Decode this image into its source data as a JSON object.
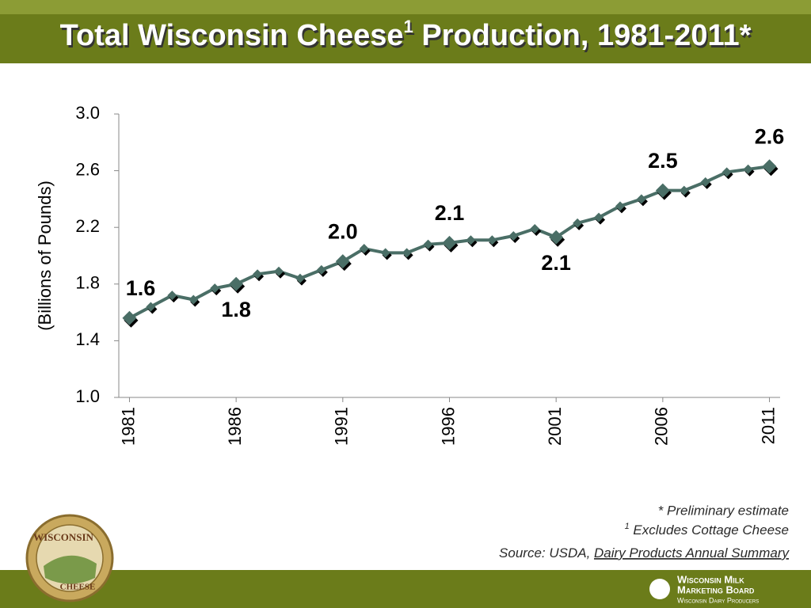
{
  "chart_data": {
    "type": "line",
    "title": "Total Wisconsin Cheese",
    "title_superscript": "1",
    "title_rest": " Production, 1981-2011*",
    "y_label": "(Billions of Pounds)",
    "x": [
      1981,
      1982,
      1983,
      1984,
      1985,
      1986,
      1987,
      1988,
      1989,
      1990,
      1991,
      1992,
      1993,
      1994,
      1995,
      1996,
      1997,
      1998,
      1999,
      2000,
      2001,
      2002,
      2003,
      2004,
      2005,
      2006,
      2007,
      2008,
      2009,
      2010,
      2011
    ],
    "values": [
      1.56,
      1.64,
      1.72,
      1.69,
      1.77,
      1.8,
      1.87,
      1.89,
      1.84,
      1.9,
      1.96,
      2.05,
      2.02,
      2.02,
      2.08,
      2.09,
      2.11,
      2.11,
      2.14,
      2.19,
      2.13,
      2.23,
      2.27,
      2.35,
      2.4,
      2.46,
      2.46,
      2.52,
      2.59,
      2.61,
      2.63
    ],
    "value_labels": [
      "1.6",
      null,
      null,
      null,
      null,
      "1.8",
      null,
      null,
      null,
      null,
      "2.0",
      null,
      null,
      null,
      null,
      "2.1",
      null,
      null,
      null,
      null,
      "2.1",
      null,
      null,
      null,
      null,
      "2.5",
      null,
      null,
      null,
      null,
      "2.6"
    ],
    "color": "#4a6e66",
    "xlim": [
      1980.5,
      2011.5
    ],
    "xticks": [
      1981,
      1986,
      1991,
      1996,
      2001,
      2006,
      2011
    ],
    "ylim": [
      1.0,
      3.0
    ],
    "yticks": [
      {
        "value": 1.0,
        "label": "1.0"
      },
      1.4,
      1.8,
      2.2,
      2.6,
      {
        "value": 3.0,
        "label": "3.0"
      }
    ],
    "grid": false
  },
  "footnotes": {
    "preliminary": "* Preliminary estimate",
    "excludes_mark": "1",
    "excludes": " Excludes Cottage Cheese",
    "source": "Source: USDA, ",
    "source_title": "Dairy Products Annual Summary"
  },
  "logos": {
    "seal_top": "WISCONSIN",
    "seal_bottom": "CHEESE",
    "board_line1": "Wisconsin Milk",
    "board_line2": "Marketing Board",
    "board_line3": "Wisconsin Dairy Producers"
  }
}
